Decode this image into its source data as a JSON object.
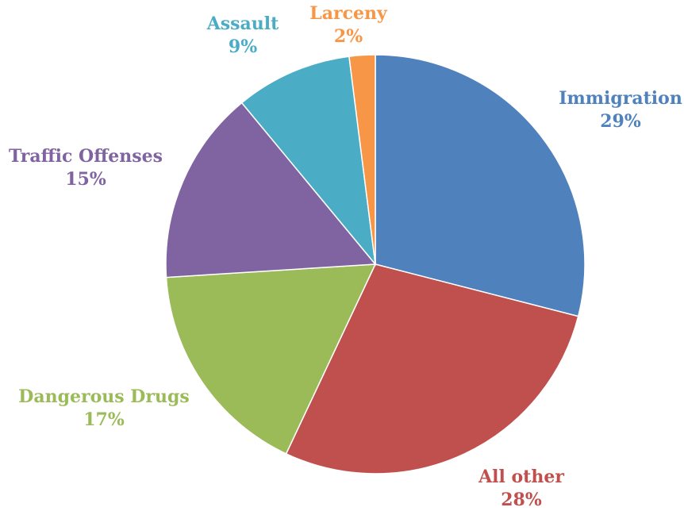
{
  "chart_data": {
    "type": "pie",
    "title": "",
    "start": "top",
    "direction": "clockwise",
    "slices": [
      {
        "label": "Immigration",
        "value": 29,
        "display": "29%",
        "color": "#4f81bd"
      },
      {
        "label": "All other",
        "value": 28,
        "display": "28%",
        "color": "#c0504d"
      },
      {
        "label": "Dangerous Drugs",
        "value": 17,
        "display": "17%",
        "color": "#9bbb59"
      },
      {
        "label": "Traffic Offenses",
        "value": 15,
        "display": "15%",
        "color": "#8064a2"
      },
      {
        "label": "Assault",
        "value": 9,
        "display": "9%",
        "color": "#4bacc6"
      },
      {
        "label": "Larceny",
        "value": 2,
        "display": "2%",
        "color": "#f79646"
      }
    ]
  }
}
